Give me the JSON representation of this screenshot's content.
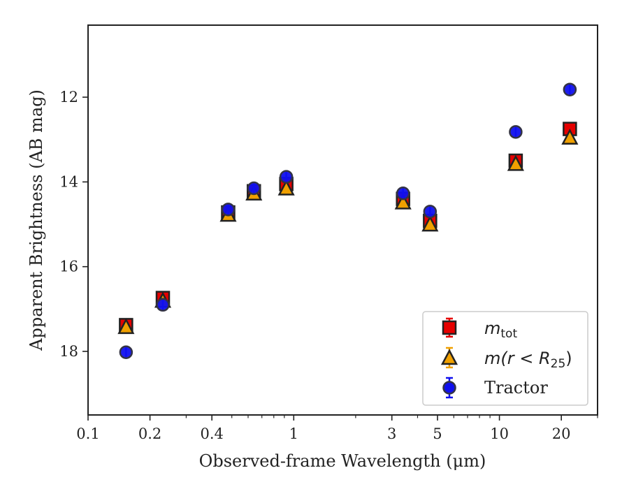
{
  "chart_data": {
    "type": "scatter",
    "xlabel": "Observed-frame Wavelength (μm)",
    "ylabel": "Apparent Brightness (AB mag)",
    "xscale": "log",
    "xlim": [
      0.1,
      30
    ],
    "ylim": [
      19.5,
      10.3
    ],
    "y_inverted": true,
    "x_ticks": [
      0.1,
      0.2,
      0.4,
      1,
      3,
      5,
      10,
      20
    ],
    "x_tick_labels": [
      "0.1",
      "0.2",
      "0.4",
      "1",
      "3",
      "5",
      "10",
      "20"
    ],
    "y_ticks": [
      12,
      14,
      16,
      18
    ],
    "y_tick_labels": [
      "12",
      "14",
      "16",
      "18"
    ],
    "grid": false,
    "legend_position": "lower-right",
    "series": [
      {
        "name": "m_tot",
        "label_main": "m",
        "label_sub": "tot",
        "marker": "square",
        "color": "#e60000",
        "edgecolor": "#222222",
        "x": [
          0.153,
          0.231,
          0.48,
          0.64,
          0.92,
          3.4,
          4.6,
          12.0,
          22.0
        ],
        "y": [
          17.38,
          16.74,
          14.72,
          14.22,
          14.05,
          14.4,
          14.92,
          13.5,
          12.75
        ]
      },
      {
        "name": "m(r<R25)",
        "label_main": "m(r < R",
        "label_sub": "25",
        "label_end": ")",
        "marker": "triangle",
        "color": "#f0a000",
        "edgecolor": "#222222",
        "x": [
          0.153,
          0.231,
          0.48,
          0.64,
          0.92,
          3.4,
          4.6,
          12.0,
          22.0
        ],
        "y": [
          17.42,
          16.8,
          14.77,
          14.27,
          14.15,
          14.48,
          15.0,
          13.57,
          12.95
        ]
      },
      {
        "name": "Tractor",
        "marker": "circle",
        "color": "#1010ee",
        "edgecolor": "#333344",
        "x": [
          0.153,
          0.231,
          0.48,
          0.64,
          0.92,
          3.4,
          4.6,
          12.0,
          22.0
        ],
        "y": [
          18.02,
          16.9,
          14.65,
          14.15,
          13.88,
          14.27,
          14.7,
          12.82,
          11.82
        ]
      }
    ]
  }
}
